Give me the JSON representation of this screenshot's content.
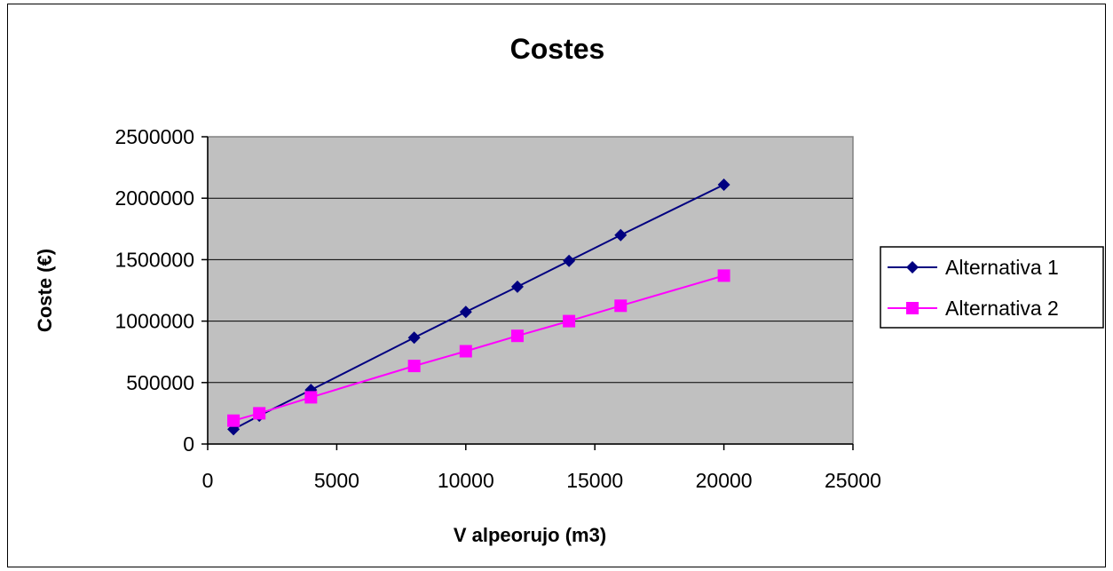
{
  "chart_data": {
    "type": "line",
    "title": "Costes",
    "xlabel": "V alpeorujo (m3)",
    "ylabel": "Coste (€)",
    "xlim": [
      0,
      25000
    ],
    "ylim": [
      0,
      2500000
    ],
    "x_ticks": [
      "0",
      "5000",
      "10000",
      "15000",
      "20000",
      "25000"
    ],
    "y_ticks": [
      "0",
      "500000",
      "1000000",
      "1500000",
      "2000000",
      "2500000"
    ],
    "grid": true,
    "plot_background": "#c0c0c0",
    "legend_position": "right",
    "series": [
      {
        "name": "Alternativa 1",
        "color": "#000080",
        "marker": "diamond",
        "x": [
          1000,
          2000,
          4000,
          8000,
          10000,
          12000,
          14000,
          16000,
          20000
        ],
        "y": [
          120000,
          230000,
          440000,
          865000,
          1075000,
          1280000,
          1490000,
          1700000,
          2110000
        ]
      },
      {
        "name": "Alternativa 2",
        "color": "#ff00ff",
        "marker": "square",
        "x": [
          1000,
          2000,
          4000,
          8000,
          10000,
          12000,
          14000,
          16000,
          20000
        ],
        "y": [
          190000,
          250000,
          380000,
          635000,
          755000,
          880000,
          1000000,
          1125000,
          1370000
        ]
      }
    ]
  }
}
